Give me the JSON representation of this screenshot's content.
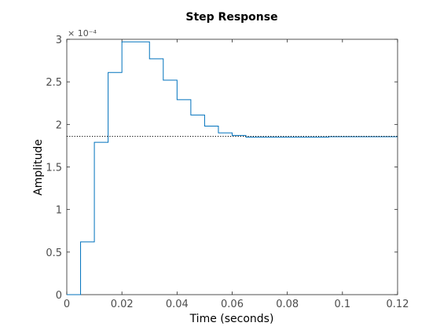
{
  "chart_data": {
    "type": "line",
    "title": "Step Response",
    "xlabel": "Time (seconds)",
    "ylabel": "Amplitude",
    "xlim": [
      0,
      0.12
    ],
    "ylim": [
      0,
      3
    ],
    "y_exponent_label": "× 10⁻⁴",
    "x_ticks": [
      0,
      0.02,
      0.04,
      0.06,
      0.08,
      0.1,
      0.12
    ],
    "x_tick_labels": [
      "0",
      "0.02",
      "0.04",
      "0.06",
      "0.08",
      "0.1",
      "0.12"
    ],
    "y_ticks": [
      0,
      0.5,
      1,
      1.5,
      2,
      2.5,
      3
    ],
    "y_tick_labels": [
      "0",
      "0.5",
      "1",
      "1.5",
      "2",
      "2.5",
      "3"
    ],
    "grid": false,
    "series": [
      {
        "style": "stairs",
        "color": "#0072BD",
        "x": [
          0,
          0.005,
          0.01,
          0.015,
          0.02,
          0.025,
          0.03,
          0.035,
          0.04,
          0.045,
          0.05,
          0.055,
          0.06,
          0.065,
          0.07,
          0.075,
          0.08,
          0.085,
          0.09,
          0.095,
          0.12
        ],
        "y": [
          0,
          0.62,
          1.79,
          2.61,
          2.97,
          2.97,
          2.77,
          2.52,
          2.29,
          2.11,
          1.98,
          1.9,
          1.87,
          1.85,
          1.85,
          1.85,
          1.85,
          1.85,
          1.85,
          1.855,
          1.855
        ]
      },
      {
        "style": "dotted",
        "color": "#000000",
        "x": [
          0,
          0.12
        ],
        "y": [
          1.86,
          1.86
        ]
      }
    ]
  }
}
